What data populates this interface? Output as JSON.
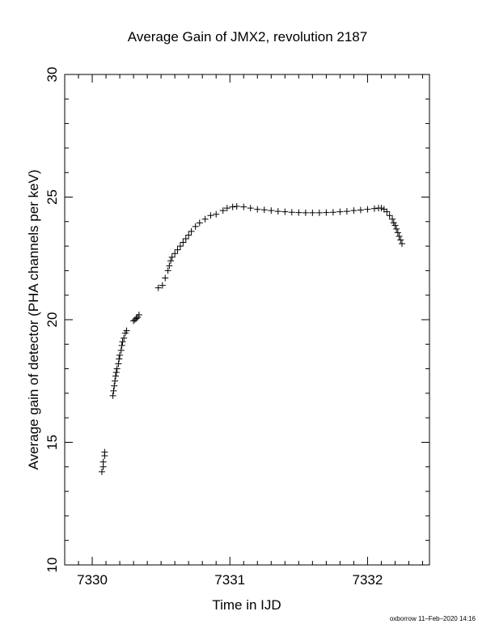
{
  "chart_data": {
    "type": "scatter",
    "title": "Average Gain of JMX2, revolution 2187",
    "xlabel": "Time in IJD",
    "ylabel": "Average gain of detector (PHA channels per keV)",
    "xlim": [
      7329.8,
      7332.45
    ],
    "ylim": [
      10,
      30
    ],
    "xticks": [
      7330,
      7331,
      7332
    ],
    "yticks": [
      10,
      15,
      20,
      25,
      30
    ],
    "marker": "+",
    "grid": false,
    "series": [
      {
        "points": [
          [
            7330.07,
            13.8
          ],
          [
            7330.08,
            14.0
          ],
          [
            7330.08,
            14.2
          ],
          [
            7330.09,
            14.45
          ],
          [
            7330.09,
            14.6
          ],
          [
            7330.15,
            16.9
          ],
          [
            7330.155,
            17.1
          ],
          [
            7330.16,
            17.3
          ],
          [
            7330.165,
            17.5
          ],
          [
            7330.17,
            17.7
          ],
          [
            7330.175,
            17.85
          ],
          [
            7330.18,
            18.0
          ],
          [
            7330.19,
            18.2
          ],
          [
            7330.195,
            18.4
          ],
          [
            7330.2,
            18.55
          ],
          [
            7330.21,
            18.75
          ],
          [
            7330.215,
            18.95
          ],
          [
            7330.22,
            19.1
          ],
          [
            7330.23,
            19.25
          ],
          [
            7330.24,
            19.45
          ],
          [
            7330.25,
            19.55
          ],
          [
            7330.3,
            19.95
          ],
          [
            7330.31,
            20.0
          ],
          [
            7330.32,
            20.05
          ],
          [
            7330.33,
            20.1
          ],
          [
            7330.34,
            20.2
          ],
          [
            7330.48,
            21.3
          ],
          [
            7330.51,
            21.4
          ],
          [
            7330.53,
            21.7
          ],
          [
            7330.55,
            22.0
          ],
          [
            7330.56,
            22.2
          ],
          [
            7330.57,
            22.4
          ],
          [
            7330.58,
            22.55
          ],
          [
            7330.6,
            22.7
          ],
          [
            7330.62,
            22.85
          ],
          [
            7330.64,
            23.0
          ],
          [
            7330.66,
            23.15
          ],
          [
            7330.68,
            23.3
          ],
          [
            7330.7,
            23.45
          ],
          [
            7330.72,
            23.6
          ],
          [
            7330.75,
            23.8
          ],
          [
            7330.78,
            23.95
          ],
          [
            7330.82,
            24.1
          ],
          [
            7330.86,
            24.25
          ],
          [
            7330.9,
            24.3
          ],
          [
            7330.95,
            24.45
          ],
          [
            7330.98,
            24.55
          ],
          [
            7331.02,
            24.6
          ],
          [
            7331.05,
            24.62
          ],
          [
            7331.1,
            24.6
          ],
          [
            7331.15,
            24.55
          ],
          [
            7331.2,
            24.5
          ],
          [
            7331.25,
            24.48
          ],
          [
            7331.3,
            24.45
          ],
          [
            7331.35,
            24.42
          ],
          [
            7331.4,
            24.4
          ],
          [
            7331.45,
            24.38
          ],
          [
            7331.5,
            24.37
          ],
          [
            7331.55,
            24.36
          ],
          [
            7331.6,
            24.36
          ],
          [
            7331.65,
            24.36
          ],
          [
            7331.7,
            24.37
          ],
          [
            7331.75,
            24.38
          ],
          [
            7331.8,
            24.4
          ],
          [
            7331.85,
            24.42
          ],
          [
            7331.9,
            24.45
          ],
          [
            7331.95,
            24.47
          ],
          [
            7332.0,
            24.5
          ],
          [
            7332.05,
            24.53
          ],
          [
            7332.08,
            24.55
          ],
          [
            7332.1,
            24.55
          ],
          [
            7332.12,
            24.5
          ],
          [
            7332.14,
            24.4
          ],
          [
            7332.16,
            24.25
          ],
          [
            7332.18,
            24.1
          ],
          [
            7332.19,
            23.95
          ],
          [
            7332.2,
            23.85
          ],
          [
            7332.21,
            23.7
          ],
          [
            7332.22,
            23.55
          ],
          [
            7332.23,
            23.4
          ],
          [
            7332.24,
            23.25
          ],
          [
            7332.25,
            23.1
          ]
        ]
      }
    ]
  },
  "credit": "oxborrow 11–Feb–2020 14:16"
}
